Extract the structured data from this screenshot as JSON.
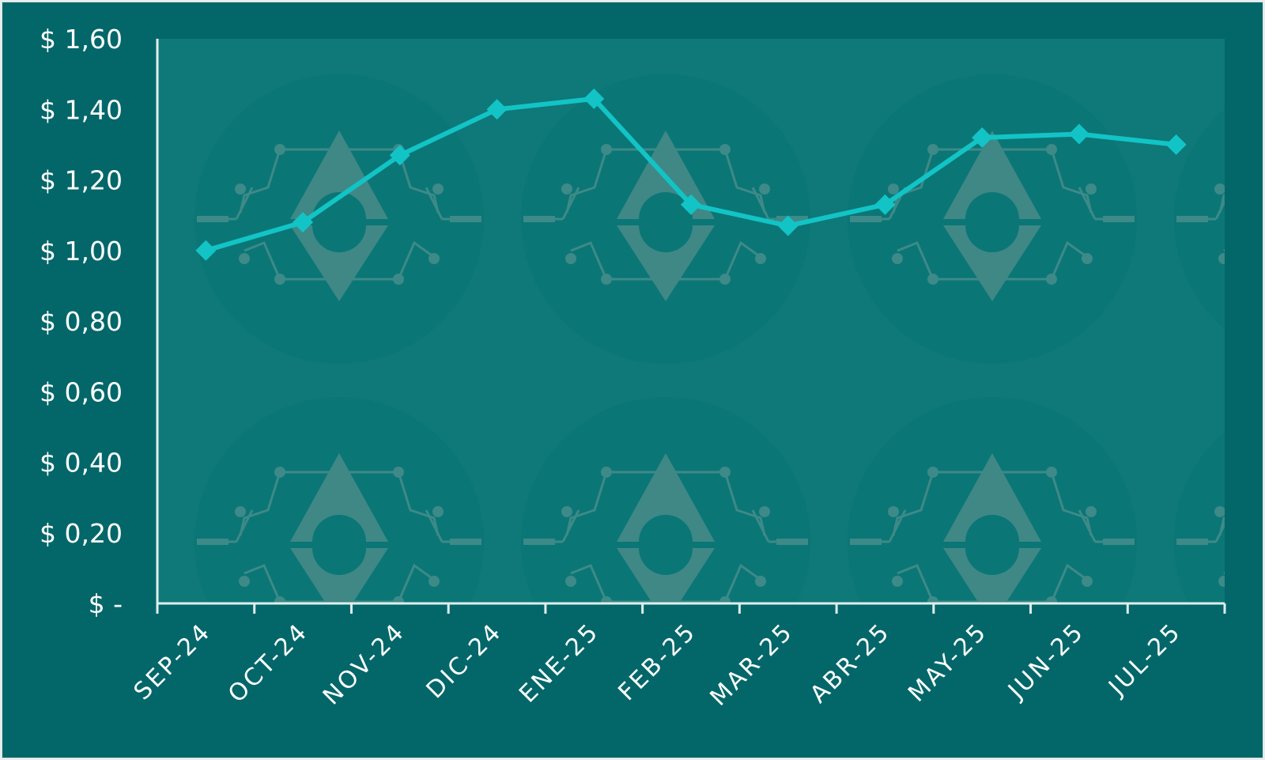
{
  "chart_data": {
    "type": "line",
    "title": "",
    "xlabel": "",
    "ylabel": "",
    "categories": [
      "SEP-24",
      "OCT-24",
      "NOV-24",
      "DIC-24",
      "ENE-25",
      "FEB-25",
      "MAR-25",
      "ABR-25",
      "MAY-25",
      "JUN-25",
      "JUL-25"
    ],
    "series": [
      {
        "values": [
          1.0,
          1.08,
          1.27,
          1.4,
          1.43,
          1.13,
          1.07,
          1.13,
          1.32,
          1.33,
          1.3
        ]
      }
    ],
    "ylim": [
      0,
      1.6
    ],
    "yticks": [
      0,
      0.2,
      0.4,
      0.6,
      0.8,
      1.0,
      1.2,
      1.4,
      1.6
    ],
    "ytick_labels": [
      "$ -",
      "$ 0,20",
      "$ 0,40",
      "$ 0,60",
      "$ 0,80",
      "$ 1,00",
      "$ 1,20",
      "$ 1,40",
      "$ 1,60"
    ],
    "grid": false,
    "legend": "none",
    "marker": "diamond",
    "colors": {
      "line": "#12c4c6",
      "background": "#03676a",
      "plot_area": "#0f7878",
      "axis": "#e0eeee",
      "text": "#ffffff"
    }
  },
  "watermark": {
    "icon": "ethereum-gear-icon"
  }
}
